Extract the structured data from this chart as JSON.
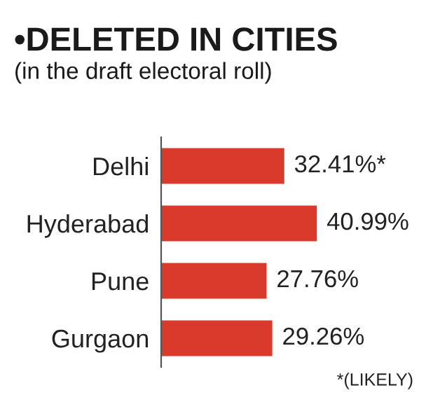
{
  "chart_data": {
    "type": "bar",
    "orientation": "horizontal",
    "title": "•DELETED IN CITIES",
    "subtitle": "(in the draft electoral roll)",
    "categories": [
      "Delhi",
      "Hyderabad",
      "Pune",
      "Gurgaon"
    ],
    "values": [
      32.41,
      40.99,
      27.76,
      29.26
    ],
    "value_labels": [
      "32.41%*",
      "40.99%",
      "27.76%",
      "29.26%"
    ],
    "color": "#d93a2b",
    "tick_labels": "y",
    "grid": false,
    "legend": false,
    "annotations": [
      "*(LIKELY)"
    ]
  }
}
